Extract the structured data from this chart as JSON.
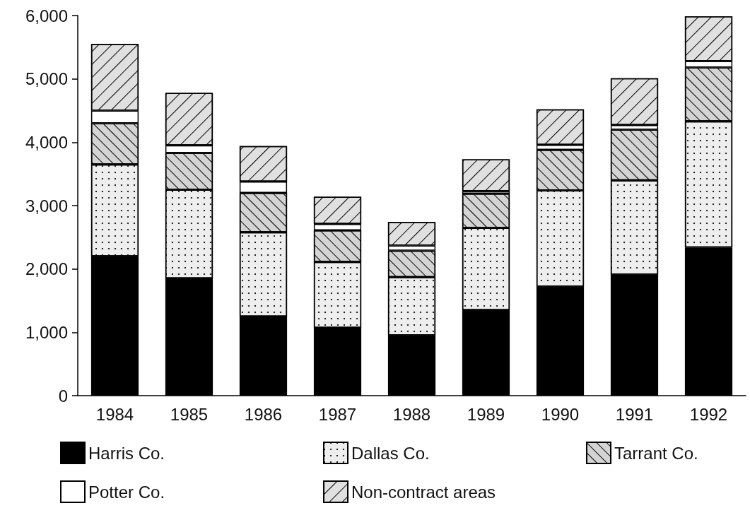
{
  "chart_data": {
    "type": "bar",
    "stacked": true,
    "categories": [
      "1984",
      "1985",
      "1986",
      "1987",
      "1988",
      "1989",
      "1990",
      "1991",
      "1992"
    ],
    "series": [
      {
        "name": "Harris Co.",
        "color": "#000000",
        "values": [
          2200,
          1850,
          1250,
          1070,
          950,
          1350,
          1720,
          1910,
          2340
        ]
      },
      {
        "name": "Dallas Co.",
        "color": "#eeeeee",
        "values": [
          1450,
          1400,
          1330,
          1040,
          920,
          1300,
          1520,
          1490,
          1990
        ]
      },
      {
        "name": "Tarrant Co.",
        "color": "#d4d4d4",
        "values": [
          650,
          580,
          620,
          500,
          420,
          540,
          640,
          800,
          850
        ]
      },
      {
        "name": "Potter Co.",
        "color": "#ffffff",
        "values": [
          200,
          120,
          180,
          100,
          80,
          40,
          80,
          70,
          100
        ]
      },
      {
        "name": "Non-contract areas",
        "color": "#e0e0e0",
        "values": [
          1050,
          830,
          560,
          430,
          370,
          500,
          560,
          740,
          710
        ]
      }
    ],
    "ylim": [
      0,
      6000
    ],
    "yticks": [
      {
        "value": 0,
        "label": "0"
      },
      {
        "value": 1000,
        "label": "1,000"
      },
      {
        "value": 2000,
        "label": "2,000"
      },
      {
        "value": 3000,
        "label": "3,000"
      },
      {
        "value": 4000,
        "label": "4,000"
      },
      {
        "value": 5000,
        "label": "5,000"
      },
      {
        "value": 6000,
        "label": "6,000"
      }
    ],
    "grid": false,
    "legend": "bottom"
  }
}
